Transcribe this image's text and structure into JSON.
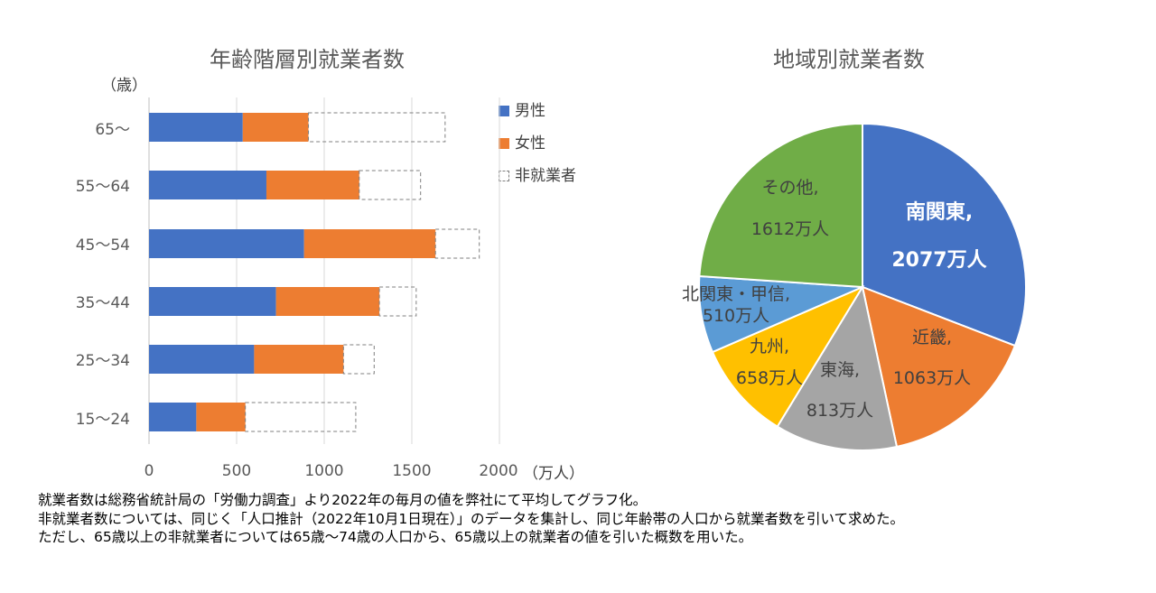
{
  "chart_data": [
    {
      "type": "bar",
      "orientation": "horizontal",
      "stacked": true,
      "title": "年齢階層別就業者数",
      "ylabel": "（歳）",
      "xlabel": "（万人）",
      "categories": [
        "65～",
        "55～64",
        "45～54",
        "35～44",
        "25～34",
        "15～24"
      ],
      "xlim": [
        0,
        2000
      ],
      "xticks": [
        "0",
        "500",
        "1000",
        "1500",
        "2000"
      ],
      "grid": true,
      "legend_position": "right",
      "series": [
        {
          "name": "男性",
          "color": "#4472C4",
          "values": [
            535,
            670,
            885,
            725,
            600,
            270
          ]
        },
        {
          "name": "女性",
          "color": "#ED7D31",
          "values": [
            375,
            530,
            750,
            590,
            510,
            280
          ]
        },
        {
          "name": "非就業者",
          "color": "none",
          "style": "dashed",
          "values": [
            780,
            350,
            250,
            210,
            175,
            630
          ]
        }
      ]
    },
    {
      "type": "pie",
      "title": "地域別就業者数",
      "slices": [
        {
          "name": "南関東",
          "value": 2077,
          "unit_label": "2077万人",
          "color": "#4472C4",
          "label_color": "#ffffff",
          "bold": true
        },
        {
          "name": "近畿",
          "value": 1063,
          "unit_label": "1063万人",
          "color": "#ED7D31",
          "label_color": "#404040",
          "bold": false
        },
        {
          "name": "東海",
          "value": 813,
          "unit_label": "813万人",
          "color": "#A5A5A5",
          "label_color": "#404040",
          "bold": false
        },
        {
          "name": "九州",
          "value": 658,
          "unit_label": "658万人",
          "color": "#FFC000",
          "label_color": "#404040",
          "bold": false
        },
        {
          "name": "北関東・甲信",
          "value": 510,
          "unit_label": "510万人",
          "color": "#5B9BD5",
          "label_color": "#404040",
          "bold": false
        },
        {
          "name": "その他",
          "value": 1612,
          "unit_label": "1612万人",
          "color": "#70AD47",
          "label_color": "#404040",
          "bold": false
        }
      ]
    }
  ],
  "notes": [
    "就業者数は総務省統計局の「労働力調査」より2022年の毎月の値を弊社にて平均してグラフ化。",
    "非就業者数については、同じく「人口推計（2022年10月1日現在）」のデータを集計し、同じ年齢帯の人口から就業者数を引いて求めた。",
    "ただし、65歳以上の非就業者については65歳～74歳の人口から、65歳以上の就業者の値を引いた概数を用いた。"
  ]
}
